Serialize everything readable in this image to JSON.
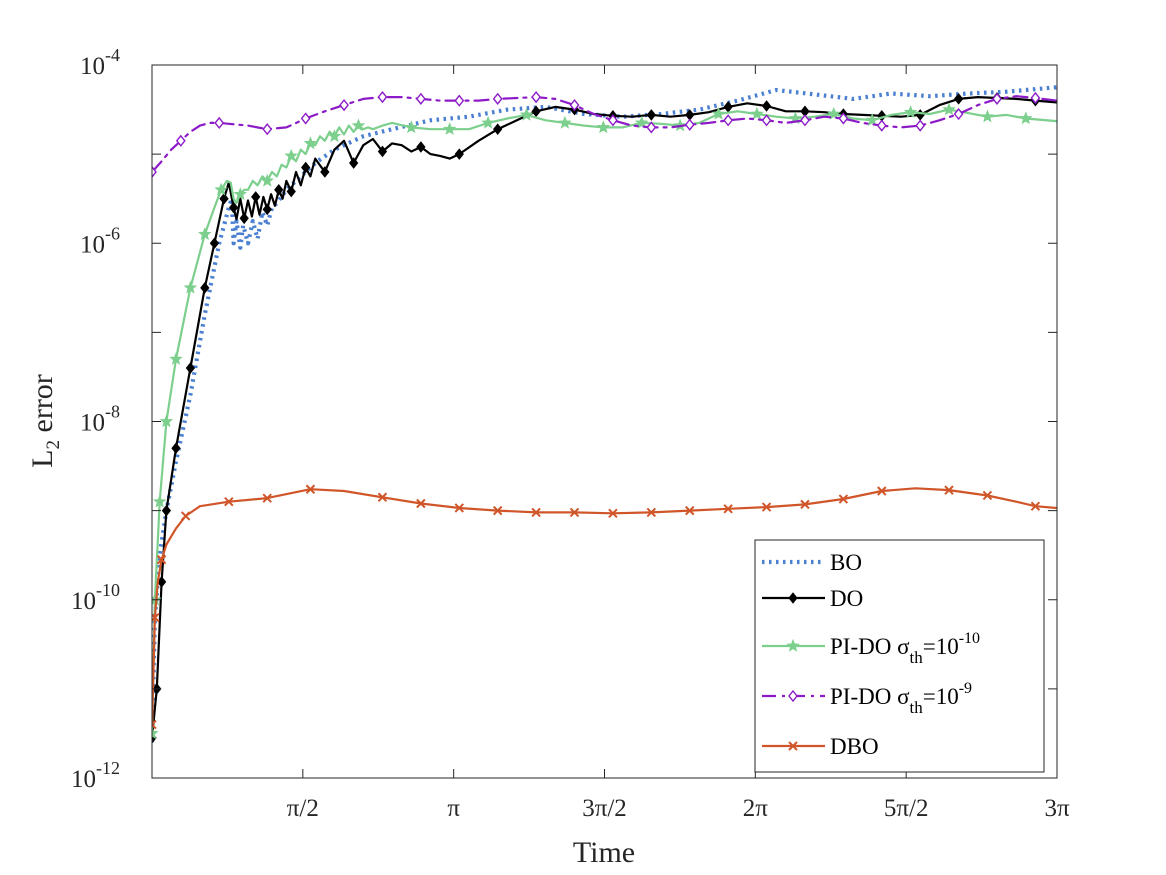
{
  "chart_data": {
    "type": "line",
    "xlabel": "Time",
    "ylabel": "L",
    "ylabel_subscript": "2",
    "ylabel_suffix": " error",
    "xlim": [
      0,
      9.42477796
    ],
    "ylim_log10": [
      -12,
      -4
    ],
    "y_scale": "log",
    "xticks": [
      {
        "value": 1.5707963,
        "label": "π/2"
      },
      {
        "value": 3.1415927,
        "label": "π"
      },
      {
        "value": 4.712389,
        "label": "3π/2"
      },
      {
        "value": 6.2831853,
        "label": "2π"
      },
      {
        "value": 7.853982,
        "label": "5π/2"
      },
      {
        "value": 9.424778,
        "label": "3π"
      }
    ],
    "yticks": [
      {
        "exp": -12,
        "base": "10",
        "label": "-12"
      },
      {
        "exp": -10,
        "base": "10",
        "label": "-10"
      },
      {
        "exp": -8,
        "base": "10",
        "label": "-8"
      },
      {
        "exp": -6,
        "base": "10",
        "label": "-6"
      },
      {
        "exp": -4,
        "base": "10",
        "label": "-4"
      }
    ],
    "grid": false,
    "legend_position": "bottom-right",
    "series": [
      {
        "name": "BO",
        "legend_text": "BO",
        "color": "#4a7fd1",
        "dash": "dotted",
        "marker": "none",
        "x": [
          0.0,
          0.03,
          0.08,
          0.15,
          0.25,
          0.4,
          0.55,
          0.7,
          0.8,
          0.83,
          0.85,
          0.88,
          0.92,
          0.95,
          1.0,
          1.05,
          1.1,
          1.15,
          1.2,
          1.25,
          1.3,
          1.4,
          1.5,
          1.7,
          1.9,
          2.2,
          2.5,
          2.9,
          3.3,
          3.7,
          4.1,
          4.5,
          4.9,
          5.3,
          5.7,
          6.1,
          6.5,
          6.9,
          7.3,
          7.7,
          8.1,
          8.5,
          8.9,
          9.42
        ],
        "y_log10": [
          -11.6,
          -10.2,
          -9.5,
          -9.0,
          -8.45,
          -7.7,
          -6.8,
          -6.0,
          -5.6,
          -5.5,
          -6.0,
          -5.75,
          -6.05,
          -5.8,
          -6.0,
          -5.75,
          -5.95,
          -5.65,
          -5.8,
          -5.6,
          -5.55,
          -5.4,
          -5.3,
          -5.1,
          -4.95,
          -4.8,
          -4.72,
          -4.62,
          -4.58,
          -4.5,
          -4.47,
          -4.55,
          -4.58,
          -4.55,
          -4.5,
          -4.4,
          -4.28,
          -4.33,
          -4.38,
          -4.32,
          -4.35,
          -4.32,
          -4.3,
          -4.25
        ]
      },
      {
        "name": "DO",
        "legend_text": "DO",
        "color": "#000000",
        "dash": "solid",
        "marker": "diamond",
        "x": [
          0.0,
          0.05,
          0.1,
          0.15,
          0.25,
          0.4,
          0.55,
          0.65,
          0.75,
          0.8,
          0.85,
          0.88,
          0.92,
          0.96,
          1.0,
          1.04,
          1.08,
          1.12,
          1.16,
          1.2,
          1.24,
          1.28,
          1.32,
          1.36,
          1.4,
          1.45,
          1.5,
          1.55,
          1.6,
          1.65,
          1.7,
          1.8,
          1.9,
          2.0,
          2.1,
          2.2,
          2.3,
          2.4,
          2.5,
          2.6,
          2.7,
          2.8,
          2.9,
          3.0,
          3.1,
          3.2,
          3.4,
          3.6,
          3.8,
          4.0,
          4.2,
          4.4,
          4.6,
          4.8,
          5.0,
          5.2,
          5.4,
          5.6,
          5.8,
          6.0,
          6.2,
          6.4,
          6.6,
          6.8,
          7.0,
          7.2,
          7.4,
          7.6,
          7.8,
          8.0,
          8.2,
          8.4,
          8.6,
          8.8,
          9.0,
          9.2,
          9.42
        ],
        "y_log10": [
          -11.55,
          -11.0,
          -9.8,
          -9.0,
          -8.3,
          -7.4,
          -6.5,
          -6.0,
          -5.5,
          -5.32,
          -5.6,
          -5.73,
          -5.5,
          -5.72,
          -5.52,
          -5.7,
          -5.48,
          -5.68,
          -5.48,
          -5.62,
          -5.45,
          -5.58,
          -5.4,
          -5.5,
          -5.3,
          -5.42,
          -5.2,
          -5.35,
          -5.15,
          -5.25,
          -5.05,
          -5.2,
          -4.95,
          -4.85,
          -5.1,
          -4.9,
          -4.83,
          -4.97,
          -4.88,
          -4.9,
          -4.97,
          -4.92,
          -5.0,
          -5.02,
          -5.05,
          -5.0,
          -4.85,
          -4.72,
          -4.62,
          -4.52,
          -4.47,
          -4.5,
          -4.55,
          -4.57,
          -4.58,
          -4.56,
          -4.58,
          -4.56,
          -4.53,
          -4.47,
          -4.43,
          -4.46,
          -4.52,
          -4.52,
          -4.53,
          -4.55,
          -4.56,
          -4.57,
          -4.58,
          -4.56,
          -4.45,
          -4.38,
          -4.36,
          -4.37,
          -4.38,
          -4.4,
          -4.42
        ]
      },
      {
        "name": "PI-DO σth=10^-10",
        "legend_text": "PI-DO σ",
        "legend_sub": "th",
        "legend_eq": "=10",
        "legend_sup": "-10",
        "color": "#7ccf8c",
        "dash": "solid",
        "marker": "star",
        "x": [
          0.0,
          0.03,
          0.08,
          0.15,
          0.25,
          0.4,
          0.55,
          0.65,
          0.72,
          0.78,
          0.82,
          0.85,
          0.88,
          0.92,
          0.96,
          1.0,
          1.05,
          1.1,
          1.15,
          1.2,
          1.25,
          1.3,
          1.35,
          1.4,
          1.45,
          1.5,
          1.55,
          1.6,
          1.65,
          1.7,
          1.75,
          1.8,
          1.85,
          1.9,
          1.95,
          2.0,
          2.05,
          2.1,
          2.15,
          2.2,
          2.25,
          2.3,
          2.4,
          2.5,
          2.7,
          2.9,
          3.1,
          3.3,
          3.5,
          3.7,
          3.9,
          4.1,
          4.3,
          4.5,
          4.7,
          4.9,
          5.1,
          5.3,
          5.5,
          5.7,
          5.9,
          6.1,
          6.3,
          6.5,
          6.7,
          6.9,
          7.1,
          7.3,
          7.5,
          7.7,
          7.9,
          8.1,
          8.3,
          8.5,
          8.7,
          8.9,
          9.1,
          9.42
        ],
        "y_log10": [
          -11.5,
          -10.0,
          -8.9,
          -8.0,
          -7.3,
          -6.5,
          -5.9,
          -5.6,
          -5.4,
          -5.3,
          -5.32,
          -5.5,
          -5.55,
          -5.45,
          -5.4,
          -5.4,
          -5.3,
          -5.35,
          -5.25,
          -5.3,
          -5.2,
          -5.25,
          -5.12,
          -5.15,
          -5.02,
          -5.08,
          -4.95,
          -5.0,
          -4.88,
          -4.9,
          -4.8,
          -4.85,
          -4.75,
          -4.8,
          -4.7,
          -4.78,
          -4.68,
          -4.75,
          -4.68,
          -4.72,
          -4.7,
          -4.72,
          -4.68,
          -4.65,
          -4.7,
          -4.72,
          -4.72,
          -4.72,
          -4.65,
          -4.6,
          -4.56,
          -4.62,
          -4.65,
          -4.68,
          -4.7,
          -4.7,
          -4.65,
          -4.66,
          -4.68,
          -4.65,
          -4.55,
          -4.52,
          -4.55,
          -4.58,
          -4.6,
          -4.58,
          -4.55,
          -4.6,
          -4.62,
          -4.56,
          -4.53,
          -4.55,
          -4.5,
          -4.54,
          -4.58,
          -4.56,
          -4.6,
          -4.63
        ]
      },
      {
        "name": "PI-DO σth=10^-9",
        "legend_text": "PI-DO σ",
        "legend_sub": "th",
        "legend_eq": "=10",
        "legend_sup": "-9",
        "color": "#8c1bc7",
        "dash": "dashdot",
        "marker": "diamond-open",
        "x": [
          0.0,
          0.1,
          0.2,
          0.3,
          0.4,
          0.5,
          0.6,
          0.7,
          0.8,
          1.0,
          1.2,
          1.4,
          1.6,
          1.8,
          2.0,
          2.2,
          2.4,
          2.6,
          2.8,
          3.0,
          3.2,
          3.4,
          3.6,
          3.8,
          4.0,
          4.2,
          4.4,
          4.6,
          4.8,
          5.0,
          5.2,
          5.4,
          5.6,
          5.8,
          6.0,
          6.2,
          6.4,
          6.6,
          6.8,
          7.0,
          7.2,
          7.4,
          7.6,
          7.8,
          8.0,
          8.2,
          8.4,
          8.6,
          8.8,
          9.0,
          9.2,
          9.42
        ],
        "y_log10": [
          -5.2,
          -5.08,
          -4.95,
          -4.85,
          -4.75,
          -4.68,
          -4.65,
          -4.65,
          -4.66,
          -4.68,
          -4.72,
          -4.7,
          -4.6,
          -4.52,
          -4.45,
          -4.38,
          -4.36,
          -4.36,
          -4.38,
          -4.4,
          -4.4,
          -4.4,
          -4.38,
          -4.37,
          -4.36,
          -4.38,
          -4.45,
          -4.55,
          -4.62,
          -4.68,
          -4.7,
          -4.7,
          -4.67,
          -4.65,
          -4.62,
          -4.6,
          -4.62,
          -4.65,
          -4.62,
          -4.58,
          -4.6,
          -4.65,
          -4.68,
          -4.7,
          -4.68,
          -4.62,
          -4.55,
          -4.45,
          -4.38,
          -4.35,
          -4.37,
          -4.4
        ]
      },
      {
        "name": "DBO",
        "legend_text": "DBO",
        "color": "#d0562a",
        "dash": "solid",
        "marker": "x",
        "x": [
          0.0,
          0.03,
          0.06,
          0.1,
          0.15,
          0.25,
          0.35,
          0.5,
          0.8,
          1.2,
          1.65,
          2.0,
          2.4,
          2.8,
          3.2,
          3.6,
          4.0,
          4.4,
          4.8,
          5.2,
          5.6,
          6.0,
          6.4,
          6.8,
          7.2,
          7.6,
          7.95,
          8.3,
          8.7,
          9.0,
          9.2,
          9.42
        ],
        "y_log10": [
          -11.4,
          -10.2,
          -9.8,
          -9.55,
          -9.38,
          -9.2,
          -9.06,
          -8.95,
          -8.9,
          -8.86,
          -8.76,
          -8.78,
          -8.85,
          -8.92,
          -8.97,
          -9.0,
          -9.02,
          -9.02,
          -9.03,
          -9.02,
          -9.0,
          -8.98,
          -8.96,
          -8.93,
          -8.87,
          -8.78,
          -8.75,
          -8.77,
          -8.83,
          -8.9,
          -8.95,
          -8.97
        ]
      }
    ]
  }
}
